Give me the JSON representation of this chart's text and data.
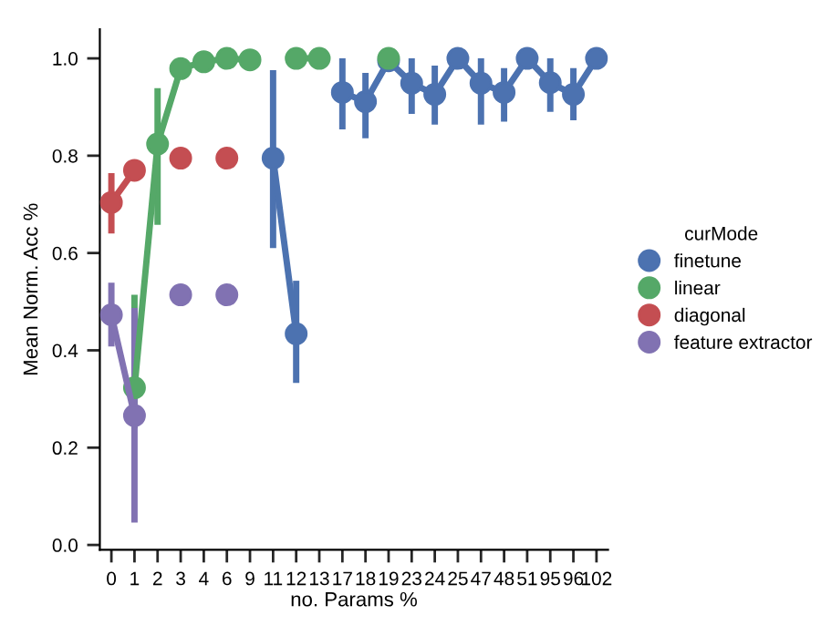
{
  "chart_data": {
    "type": "line",
    "xlabel": "no. Params %",
    "ylabel": "Mean Norm. Acc %",
    "legend_title": "curMode",
    "legend": "right",
    "marker": "circle",
    "line_style": "solid",
    "grid": false,
    "categories": [
      "0",
      "1",
      "2",
      "3",
      "4",
      "6",
      "9",
      "11",
      "12",
      "13",
      "17",
      "18",
      "19",
      "23",
      "24",
      "25",
      "47",
      "48",
      "51",
      "95",
      "96",
      "102"
    ],
    "ylim": [
      -0.01,
      1.06
    ],
    "yticks": [
      {
        "value": 0,
        "label": "0.0"
      },
      0.2,
      0.4,
      0.6,
      0.8,
      {
        "value": 1,
        "label": "1.0"
      }
    ],
    "series": [
      {
        "name": "finetune",
        "color": "#4c72b0",
        "values": [
          null,
          null,
          null,
          null,
          null,
          null,
          null,
          0.795,
          0.434,
          null,
          0.93,
          0.911,
          0.995,
          0.949,
          0.926,
          1.0,
          0.949,
          0.93,
          1.0,
          0.95,
          0.926,
          1.0
        ],
        "errors": [
          null,
          null,
          null,
          null,
          null,
          null,
          null,
          [
            0.61,
            0.976
          ],
          [
            0.333,
            0.543
          ],
          null,
          [
            0.854,
            1.0
          ],
          [
            0.836,
            0.97
          ],
          null,
          [
            0.886,
            1.0
          ],
          [
            0.864,
            0.985
          ],
          null,
          [
            0.864,
            1.0
          ],
          [
            0.87,
            0.98
          ],
          null,
          [
            0.89,
            1.0
          ],
          [
            0.873,
            0.98
          ],
          null
        ]
      },
      {
        "name": "linear",
        "color": "#55a868",
        "values": [
          null,
          0.323,
          0.824,
          0.979,
          0.993,
          1.0,
          0.997,
          null,
          1.0,
          1.0,
          null,
          null,
          1.0,
          null,
          null,
          null,
          null,
          null,
          null,
          null,
          null,
          null
        ],
        "errors": [
          null,
          [
            0.24,
            0.514
          ],
          [
            0.658,
            0.939
          ],
          null,
          null,
          null,
          null,
          null,
          null,
          null,
          null,
          null,
          null,
          null,
          null,
          null,
          null,
          null,
          null,
          null,
          null,
          null
        ]
      },
      {
        "name": "diagonal",
        "color": "#c44e52",
        "values": [
          0.704,
          0.77,
          null,
          0.795,
          null,
          0.795,
          null,
          null,
          null,
          null,
          null,
          null,
          null,
          null,
          null,
          null,
          null,
          null,
          null,
          null,
          null,
          null
        ],
        "errors": [
          [
            0.64,
            0.764
          ],
          [
            0.75,
            0.79
          ],
          null,
          null,
          null,
          null,
          null,
          null,
          null,
          null,
          null,
          null,
          null,
          null,
          null,
          null,
          null,
          null,
          null,
          null,
          null,
          null
        ]
      },
      {
        "name": "feature extractor",
        "color": "#8172b2",
        "values": [
          0.473,
          0.266,
          null,
          0.514,
          null,
          0.514,
          null,
          null,
          null,
          null,
          null,
          null,
          null,
          null,
          null,
          null,
          null,
          null,
          null,
          null,
          null,
          null
        ],
        "errors": [
          [
            0.408,
            0.539
          ],
          [
            0.046,
            0.487
          ],
          null,
          null,
          null,
          null,
          null,
          null,
          null,
          null,
          null,
          null,
          null,
          null,
          null,
          null,
          null,
          null,
          null,
          null,
          null,
          null
        ]
      }
    ]
  }
}
